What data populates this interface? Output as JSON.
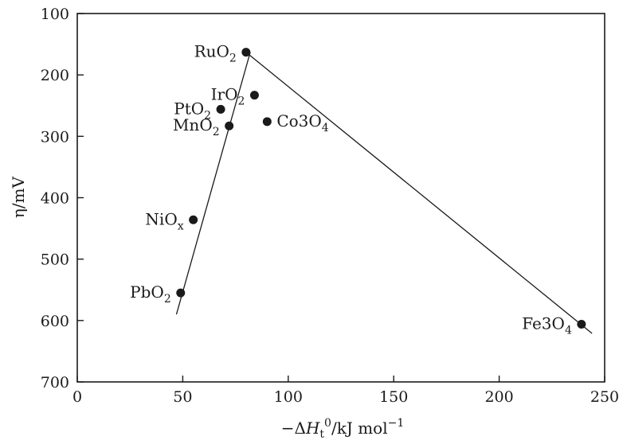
{
  "chart_data": {
    "type": "scatter",
    "title": "",
    "xlabel": {
      "prefix": "−Δ",
      "var": "H",
      "sub": "t",
      "sup": "0",
      "unit": "/kJ mol",
      "unit_sup": "−1"
    },
    "ylabel": "η/mV",
    "xlim": [
      0,
      250
    ],
    "ylim": [
      100,
      700
    ],
    "y_inverted": true,
    "xticks": [
      0,
      50,
      100,
      150,
      200,
      250
    ],
    "yticks": [
      100,
      200,
      300,
      400,
      500,
      600,
      700
    ],
    "grid": false,
    "points": [
      {
        "name": "RuO",
        "sub": "2",
        "x": 80,
        "y": 163,
        "label_side": "left"
      },
      {
        "name": "IrO",
        "sub": "2",
        "x": 84,
        "y": 233,
        "label_side": "left"
      },
      {
        "name": "PtO",
        "sub": "2",
        "x": 68,
        "y": 256,
        "label_side": "left"
      },
      {
        "name": "MnO",
        "sub": "2",
        "x": 72,
        "y": 283,
        "label_side": "left"
      },
      {
        "name": "Co3O",
        "sub": "4",
        "x": 90,
        "y": 276,
        "label_side": "right"
      },
      {
        "name": "NiO",
        "sub": "x",
        "x": 55,
        "y": 436,
        "label_side": "left"
      },
      {
        "name": "PbO",
        "sub": "2",
        "x": 49,
        "y": 555,
        "label_side": "left"
      },
      {
        "name": "Fe3O",
        "sub": "4",
        "x": 239,
        "y": 606,
        "label_side": "left"
      }
    ],
    "lines": [
      {
        "name": "",
        "x": [
          47,
          82
        ],
        "y": [
          590,
          163
        ]
      },
      {
        "name": "",
        "x": [
          80,
          244
        ],
        "y": [
          163,
          621
        ]
      }
    ]
  }
}
